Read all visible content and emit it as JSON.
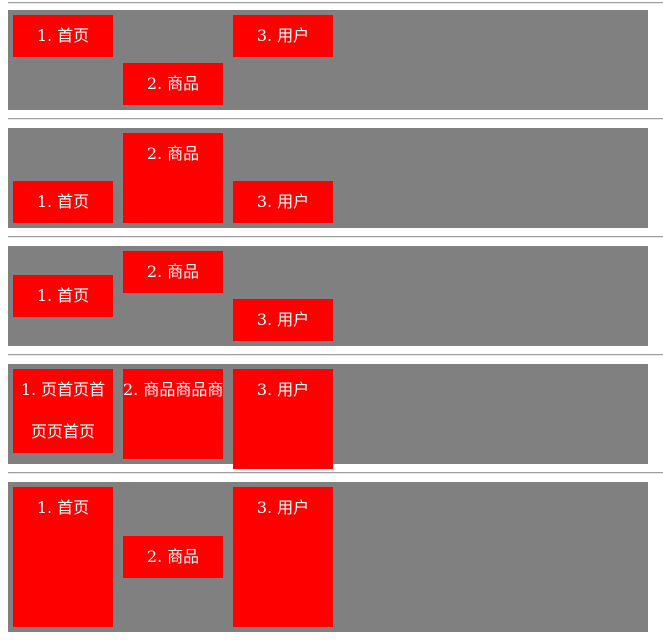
{
  "colors": {
    "container_bg": "#808080",
    "item_bg": "#ff0000",
    "item_text": "#ffffff",
    "separator": "#a0a0a0"
  },
  "rows": [
    {
      "items": [
        {
          "label": "1. 首页"
        },
        {
          "label": "2. 商品"
        },
        {
          "label": "3. 用户"
        }
      ]
    },
    {
      "items": [
        {
          "label": "1. 首页"
        },
        {
          "label": "2. 商品"
        },
        {
          "label": "3. 用户"
        }
      ]
    },
    {
      "items": [
        {
          "label": "1. 首页"
        },
        {
          "label": "2. 商品"
        },
        {
          "label": "3. 用户"
        }
      ]
    },
    {
      "items": [
        {
          "label": "1. 页首页首页页首页"
        },
        {
          "label": "2. 商品商品商"
        },
        {
          "label": "3. 用户"
        }
      ]
    },
    {
      "items": [
        {
          "label": "1. 首页"
        },
        {
          "label": "2. 商品"
        },
        {
          "label": "3. 用户"
        }
      ]
    }
  ]
}
